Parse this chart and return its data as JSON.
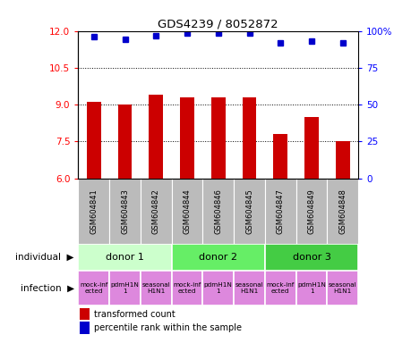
{
  "title": "GDS4239 / 8052872",
  "samples": [
    "GSM604841",
    "GSM604843",
    "GSM604842",
    "GSM604844",
    "GSM604846",
    "GSM604845",
    "GSM604847",
    "GSM604849",
    "GSM604848"
  ],
  "bar_values": [
    9.1,
    9.0,
    9.4,
    9.3,
    9.3,
    9.3,
    7.8,
    8.5,
    7.5
  ],
  "scatter_values": [
    11.75,
    11.65,
    11.8,
    11.9,
    11.9,
    11.9,
    11.5,
    11.6,
    11.5
  ],
  "ylim_left": [
    6,
    12
  ],
  "ylim_right": [
    0,
    100
  ],
  "yticks_left": [
    6,
    7.5,
    9,
    10.5,
    12
  ],
  "yticks_right": [
    0,
    25,
    50,
    75,
    100
  ],
  "bar_color": "#cc0000",
  "scatter_color": "#0000cc",
  "donors": [
    {
      "label": "donor 1",
      "start": 0,
      "end": 3,
      "color": "#ccffcc"
    },
    {
      "label": "donor 2",
      "start": 3,
      "end": 6,
      "color": "#66ee66"
    },
    {
      "label": "donor 3",
      "start": 6,
      "end": 9,
      "color": "#44cc44"
    }
  ],
  "infection_labels": [
    "mock-inf\nected",
    "pdmH1N\n1",
    "seasonal\nH1N1",
    "mock-inf\nected",
    "pdmH1N\n1",
    "seasonal\nH1N1",
    "mock-inf\nected",
    "pdmH1N\n1",
    "seasonal\nH1N1"
  ],
  "infection_color": "#dd88dd",
  "sample_bg_color": "#bbbbbb",
  "baseline": 6,
  "bar_width": 0.45
}
